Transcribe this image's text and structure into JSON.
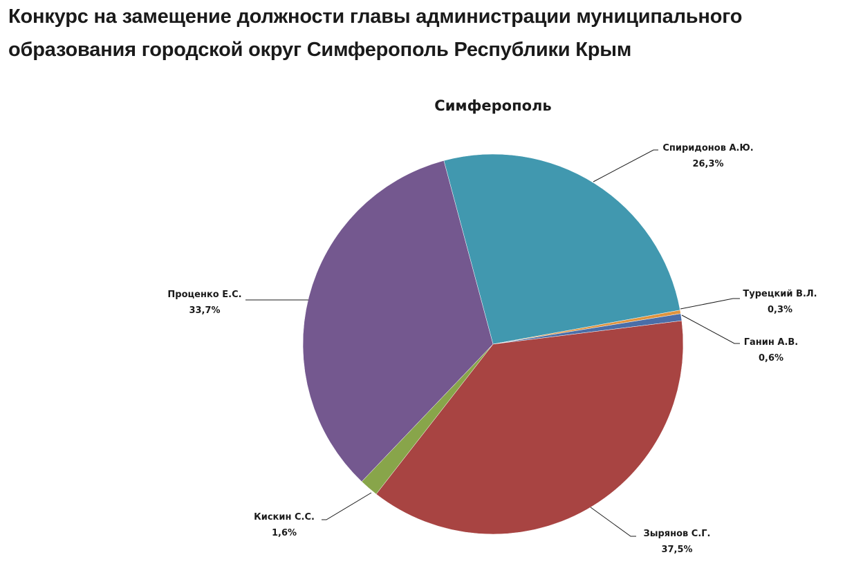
{
  "page": {
    "title": "Конкурс на замещение должности главы администрации муниципального образования городской округ Симферополь Республики Крым"
  },
  "chart_data": {
    "type": "pie",
    "title": "Симферополь",
    "legend": "none",
    "slices": [
      {
        "name": "Спиридонов А.Ю.",
        "value": 26.3,
        "label": "26,3%",
        "color": "#4198AF"
      },
      {
        "name": "Турецкий В.Л.",
        "value": 0.3,
        "label": "0,3%",
        "color": "#E0943E"
      },
      {
        "name": "Ганин А.В.",
        "value": 0.6,
        "label": "0,6%",
        "color": "#4A6EA8"
      },
      {
        "name": "Зырянов С.Г.",
        "value": 37.5,
        "label": "37,5%",
        "color": "#A84442"
      },
      {
        "name": "Кискин С.С.",
        "value": 1.6,
        "label": "1,6%",
        "color": "#88A54A"
      },
      {
        "name": "Проценко Е.С.",
        "value": 33.7,
        "label": "33,7%",
        "color": "#74588F"
      }
    ]
  }
}
